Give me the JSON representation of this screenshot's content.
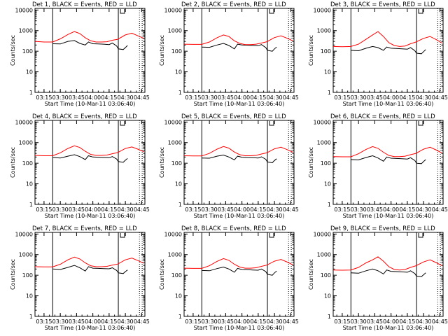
{
  "colors": {
    "background": "#ffffff",
    "axes": "#000000",
    "events_series": "#000000",
    "lld_series": "#ff0000"
  },
  "common": {
    "ylabel": "Counts/sec",
    "xlabel": "Start Time (10-Mar-11 03:06:40)",
    "x_tick_labels": [
      "03:15",
      "03:30",
      "03:45",
      "04:00",
      "04:15",
      "04:30",
      "04:45"
    ],
    "y_tick_labels": [
      "1",
      "10",
      "100",
      "1000",
      "10000"
    ]
  },
  "chart_data": [
    {
      "type": "line",
      "title": "Det 1, BLACK = Events, RED = LLD",
      "xlabel": "Start Time (10-Mar-11 03:06:40)",
      "ylabel": "Counts/sec",
      "xlim": [
        "03:06:40",
        "04:48:00"
      ],
      "ylim": [
        1,
        12000
      ],
      "yscale": "log",
      "vertical_lines": {
        "solid": [
          "03:23:00",
          "04:23:30"
        ],
        "dotted": [
          "04:43:00",
          "04:45:30"
        ]
      },
      "series": [
        {
          "name": "Events",
          "color": "#000000",
          "events_gap": [
            "04:23:30",
            "04:28:00"
          ],
          "x": [
            "03:06:40",
            "03:15",
            "03:23",
            "03:30",
            "03:37",
            "03:43",
            "03:48",
            "03:53",
            "03:56",
            "04:00",
            "04:05",
            "04:10",
            "04:15",
            "04:18",
            "04:22",
            "04:23:30",
            "04:28",
            "04:30",
            "04:32"
          ],
          "values": [
            null,
            null,
            230,
            225,
            300,
            330,
            240,
            200,
            280,
            230,
            225,
            220,
            210,
            250,
            180,
            130,
            120,
            150,
            190
          ]
        },
        {
          "name": "LLD",
          "color": "#ff0000",
          "x": [
            "03:06:40",
            "03:15",
            "03:23",
            "03:30",
            "03:37",
            "03:43",
            "03:48",
            "03:53",
            "03:58",
            "04:03",
            "04:08",
            "04:13",
            "04:18",
            "04:23",
            "04:30",
            "04:36",
            "04:42",
            "04:47"
          ],
          "values": [
            300,
            280,
            280,
            400,
            650,
            900,
            720,
            450,
            320,
            280,
            280,
            290,
            340,
            380,
            620,
            750,
            550,
            420
          ]
        }
      ]
    },
    {
      "type": "line",
      "title": "Det 2, BLACK = Events, RED = LLD",
      "xlabel": "Start Time (10-Mar-11 03:06:40)",
      "ylabel": "Counts/sec",
      "xlim": [
        "03:06:40",
        "04:48:00"
      ],
      "ylim": [
        1,
        12000
      ],
      "yscale": "log",
      "vertical_lines": {
        "solid": [
          "03:23:00",
          "04:23:30"
        ],
        "dotted": [
          "04:43:00",
          "04:45:30"
        ]
      },
      "series": [
        {
          "name": "Events",
          "color": "#000000",
          "x": [
            "03:23",
            "03:30",
            "03:37",
            "03:43",
            "03:48",
            "03:53",
            "03:56",
            "04:00",
            "04:05",
            "04:10",
            "04:15",
            "04:18",
            "04:22",
            "04:23:30",
            "04:28",
            "04:30",
            "04:32"
          ],
          "values": [
            160,
            155,
            200,
            240,
            190,
            130,
            220,
            200,
            195,
            190,
            185,
            210,
            150,
            110,
            100,
            130,
            160
          ]
        },
        {
          "name": "LLD",
          "color": "#ff0000",
          "x": [
            "03:06:40",
            "03:15",
            "03:23",
            "03:30",
            "03:37",
            "03:43",
            "03:48",
            "03:53",
            "03:58",
            "04:03",
            "04:08",
            "04:13",
            "04:18",
            "04:23",
            "04:30",
            "04:36",
            "04:42",
            "04:47"
          ],
          "values": [
            220,
            215,
            215,
            280,
            450,
            620,
            520,
            320,
            240,
            210,
            210,
            220,
            250,
            290,
            460,
            560,
            420,
            320
          ]
        }
      ]
    },
    {
      "type": "line",
      "title": "Det 3, BLACK = Events, RED = LLD",
      "xlabel": "Start Time (10-Mar-11 03:06:40)",
      "ylabel": "Counts/sec",
      "xlim": [
        "03:06:40",
        "04:48:00"
      ],
      "ylim": [
        1,
        12000
      ],
      "yscale": "log",
      "vertical_lines": {
        "solid": [
          "03:23:00",
          "04:23:30"
        ],
        "dotted": [
          "04:43:00",
          "04:45:30"
        ]
      },
      "series": [
        {
          "name": "Events",
          "color": "#000000",
          "x": [
            "03:23",
            "03:30",
            "03:37",
            "03:43",
            "03:48",
            "03:53",
            "03:56",
            "04:00",
            "04:05",
            "04:10",
            "04:15",
            "04:18",
            "04:22",
            "04:23:30",
            "04:28",
            "04:30",
            "04:32"
          ],
          "values": [
            110,
            105,
            140,
            170,
            150,
            110,
            160,
            140,
            135,
            130,
            125,
            150,
            105,
            80,
            75,
            95,
            120
          ]
        },
        {
          "name": "LLD",
          "color": "#ff0000",
          "x": [
            "03:06:40",
            "03:15",
            "03:23",
            "03:30",
            "03:37",
            "03:43",
            "03:48",
            "03:53",
            "03:58",
            "04:03",
            "04:08",
            "04:13",
            "04:18",
            "04:23",
            "04:30",
            "04:36",
            "04:42",
            "04:47"
          ],
          "values": [
            170,
            165,
            170,
            220,
            380,
            620,
            900,
            520,
            260,
            190,
            170,
            180,
            230,
            280,
            420,
            520,
            360,
            250
          ]
        }
      ]
    },
    {
      "type": "line",
      "title": "Det 4, BLACK = Events, RED = LLD",
      "xlabel": "Start Time (10-Mar-11 03:06:40)",
      "ylabel": "Counts/sec",
      "xlim": [
        "03:06:40",
        "04:48:00"
      ],
      "ylim": [
        1,
        12000
      ],
      "yscale": "log",
      "vertical_lines": {
        "solid": [
          "03:23:00",
          "04:23:30"
        ],
        "dotted": [
          "04:43:00",
          "04:45:30"
        ]
      },
      "series": [
        {
          "name": "Events",
          "color": "#000000",
          "x": [
            "03:23",
            "03:30",
            "03:37",
            "03:43",
            "03:48",
            "03:53",
            "03:56",
            "04:00",
            "04:05",
            "04:10",
            "04:15",
            "04:18",
            "04:22",
            "04:23:30",
            "04:28",
            "04:30",
            "04:32"
          ],
          "values": [
            190,
            180,
            220,
            260,
            210,
            150,
            230,
            200,
            195,
            190,
            185,
            210,
            160,
            120,
            110,
            140,
            170
          ]
        },
        {
          "name": "LLD",
          "color": "#ff0000",
          "x": [
            "03:06:40",
            "03:15",
            "03:23",
            "03:30",
            "03:37",
            "03:43",
            "03:48",
            "03:53",
            "03:58",
            "04:03",
            "04:08",
            "04:13",
            "04:18",
            "04:23",
            "04:30",
            "04:36",
            "04:42",
            "04:47"
          ],
          "values": [
            240,
            230,
            230,
            320,
            520,
            700,
            580,
            380,
            270,
            240,
            240,
            250,
            290,
            330,
            520,
            620,
            470,
            360
          ]
        }
      ]
    },
    {
      "type": "line",
      "title": "Det 5, BLACK = Events, RED = LLD",
      "xlabel": "Start Time (10-Mar-11 03:06:40)",
      "ylabel": "Counts/sec",
      "xlim": [
        "03:06:40",
        "04:48:00"
      ],
      "ylim": [
        1,
        12000
      ],
      "yscale": "log",
      "vertical_lines": {
        "solid": [
          "03:23:00",
          "04:23:30"
        ],
        "dotted": [
          "04:43:00",
          "04:45:30"
        ]
      },
      "series": [
        {
          "name": "Events",
          "color": "#000000",
          "x": [
            "03:23",
            "03:30",
            "03:37",
            "03:43",
            "03:48",
            "03:53",
            "03:56",
            "04:00",
            "04:05",
            "04:10",
            "04:15",
            "04:18",
            "04:22",
            "04:23:30",
            "04:28",
            "04:30",
            "04:32"
          ],
          "values": [
            180,
            175,
            220,
            250,
            200,
            145,
            220,
            195,
            190,
            185,
            180,
            205,
            155,
            115,
            105,
            135,
            165
          ]
        },
        {
          "name": "LLD",
          "color": "#ff0000",
          "x": [
            "03:06:40",
            "03:15",
            "03:23",
            "03:30",
            "03:37",
            "03:43",
            "03:48",
            "03:53",
            "03:58",
            "04:03",
            "04:08",
            "04:13",
            "04:18",
            "04:23",
            "04:30",
            "04:36",
            "04:42",
            "04:47"
          ],
          "values": [
            230,
            225,
            225,
            300,
            480,
            650,
            540,
            350,
            260,
            230,
            230,
            240,
            280,
            320,
            500,
            600,
            450,
            340
          ]
        }
      ]
    },
    {
      "type": "line",
      "title": "Det 6, BLACK = Events, RED = LLD",
      "xlabel": "Start Time (10-Mar-11 03:06:40)",
      "ylabel": "Counts/sec",
      "xlim": [
        "03:06:40",
        "04:48:00"
      ],
      "ylim": [
        1,
        12000
      ],
      "yscale": "log",
      "vertical_lines": {
        "solid": [
          "03:23:00",
          "04:23:30"
        ],
        "dotted": [
          "04:43:00",
          "04:45:30"
        ]
      },
      "series": [
        {
          "name": "Events",
          "color": "#000000",
          "x": [
            "03:23",
            "03:30",
            "03:37",
            "03:43",
            "03:48",
            "03:53",
            "03:56",
            "04:00",
            "04:05",
            "04:10",
            "04:15",
            "04:18",
            "04:22",
            "04:23:30",
            "04:28",
            "04:30",
            "04:32"
          ],
          "values": [
            150,
            145,
            190,
            230,
            180,
            125,
            200,
            175,
            170,
            165,
            160,
            185,
            135,
            100,
            95,
            120,
            150
          ]
        },
        {
          "name": "LLD",
          "color": "#ff0000",
          "x": [
            "03:06:40",
            "03:15",
            "03:23",
            "03:30",
            "03:37",
            "03:43",
            "03:48",
            "03:53",
            "03:58",
            "04:03",
            "04:08",
            "04:13",
            "04:18",
            "04:23",
            "04:30",
            "04:36",
            "04:42",
            "04:47"
          ],
          "values": [
            210,
            205,
            205,
            290,
            470,
            640,
            530,
            340,
            240,
            210,
            210,
            220,
            260,
            300,
            480,
            600,
            430,
            310
          ]
        }
      ]
    },
    {
      "type": "line",
      "title": "Det 7, BLACK = Events, RED = LLD",
      "xlabel": "Start Time (10-Mar-11 03:06:40)",
      "ylabel": "Counts/sec",
      "xlim": [
        "03:06:40",
        "04:48:00"
      ],
      "ylim": [
        1,
        12000
      ],
      "yscale": "log",
      "vertical_lines": {
        "solid": [
          "03:23:00",
          "04:23:30"
        ],
        "dotted": [
          "04:43:00",
          "04:45:30"
        ]
      },
      "series": [
        {
          "name": "Events",
          "color": "#000000",
          "x": [
            "03:23",
            "03:30",
            "03:37",
            "03:43",
            "03:48",
            "03:53",
            "03:56",
            "04:00",
            "04:05",
            "04:10",
            "04:15",
            "04:18",
            "04:22",
            "04:23:30",
            "04:28",
            "04:30",
            "04:32"
          ],
          "values": [
            200,
            190,
            240,
            300,
            230,
            160,
            260,
            220,
            215,
            210,
            205,
            230,
            170,
            130,
            120,
            150,
            180
          ]
        },
        {
          "name": "LLD",
          "color": "#ff0000",
          "x": [
            "03:06:40",
            "03:15",
            "03:23",
            "03:30",
            "03:37",
            "03:43",
            "03:48",
            "03:53",
            "03:58",
            "04:03",
            "04:08",
            "04:13",
            "04:18",
            "04:23",
            "04:30",
            "04:36",
            "04:42",
            "04:47"
          ],
          "values": [
            260,
            255,
            255,
            340,
            560,
            760,
            620,
            400,
            290,
            260,
            260,
            270,
            310,
            350,
            560,
            680,
            500,
            380
          ]
        }
      ]
    },
    {
      "type": "line",
      "title": "Det 8, BLACK = Events, RED = LLD",
      "xlabel": "Start Time (10-Mar-11 03:06:40)",
      "ylabel": "Counts/sec",
      "xlim": [
        "03:06:40",
        "04:48:00"
      ],
      "ylim": [
        1,
        12000
      ],
      "yscale": "log",
      "vertical_lines": {
        "solid": [
          "03:23:00",
          "04:23:30"
        ],
        "dotted": [
          "04:43:00",
          "04:45:30"
        ]
      },
      "series": [
        {
          "name": "Events",
          "color": "#000000",
          "x": [
            "03:23",
            "03:30",
            "03:37",
            "03:43",
            "03:48",
            "03:53",
            "03:56",
            "04:00",
            "04:05",
            "04:10",
            "04:15",
            "04:18",
            "04:22",
            "04:23:30",
            "04:28",
            "04:30",
            "04:32"
          ],
          "values": [
            170,
            165,
            210,
            250,
            200,
            140,
            215,
            190,
            185,
            180,
            175,
            200,
            150,
            110,
            100,
            130,
            160
          ]
        },
        {
          "name": "LLD",
          "color": "#ff0000",
          "x": [
            "03:06:40",
            "03:15",
            "03:23",
            "03:30",
            "03:37",
            "03:43",
            "03:48",
            "03:53",
            "03:58",
            "04:03",
            "04:08",
            "04:13",
            "04:18",
            "04:23",
            "04:30",
            "04:36",
            "04:42",
            "04:47"
          ],
          "values": [
            220,
            215,
            215,
            290,
            470,
            640,
            530,
            340,
            250,
            220,
            220,
            230,
            270,
            310,
            480,
            580,
            430,
            320
          ]
        }
      ]
    },
    {
      "type": "line",
      "title": "Det 9, BLACK = Events, RED = LLD",
      "xlabel": "Start Time (10-Mar-11 03:06:40)",
      "ylabel": "Counts/sec",
      "xlim": [
        "03:06:40",
        "04:48:00"
      ],
      "ylim": [
        1,
        12000
      ],
      "yscale": "log",
      "vertical_lines": {
        "solid": [
          "03:23:00",
          "04:23:30"
        ],
        "dotted": [
          "04:43:00",
          "04:45:30"
        ]
      },
      "series": [
        {
          "name": "Events",
          "color": "#000000",
          "x": [
            "03:23",
            "03:30",
            "03:37",
            "03:43",
            "03:48",
            "03:53",
            "03:56",
            "04:00",
            "04:05",
            "04:10",
            "04:15",
            "04:18",
            "04:22",
            "04:23:30",
            "04:28",
            "04:30",
            "04:32"
          ],
          "values": [
            130,
            125,
            165,
            200,
            165,
            115,
            180,
            155,
            150,
            145,
            140,
            165,
            120,
            90,
            85,
            105,
            130
          ]
        },
        {
          "name": "LLD",
          "color": "#ff0000",
          "x": [
            "03:06:40",
            "03:15",
            "03:23",
            "03:30",
            "03:37",
            "03:43",
            "03:48",
            "03:53",
            "03:58",
            "04:03",
            "04:08",
            "04:13",
            "04:18",
            "04:23",
            "04:30",
            "04:36",
            "04:42",
            "04:47"
          ],
          "values": [
            180,
            175,
            180,
            240,
            400,
            560,
            780,
            480,
            260,
            190,
            180,
            190,
            240,
            290,
            440,
            560,
            400,
            290
          ]
        }
      ]
    }
  ]
}
